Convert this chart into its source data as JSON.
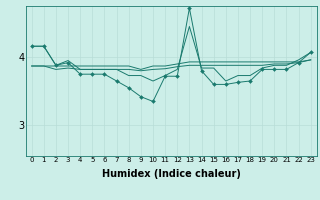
{
  "xlabel": "Humidex (Indice chaleur)",
  "background_color": "#cceee8",
  "line_color": "#1a7a6e",
  "grid_color": "#b8ddd8",
  "x_ticks": [
    0,
    1,
    2,
    3,
    4,
    5,
    6,
    7,
    8,
    9,
    10,
    11,
    12,
    13,
    14,
    15,
    16,
    17,
    18,
    19,
    20,
    21,
    22,
    23
  ],
  "y_ticks": [
    3,
    4
  ],
  "ylim": [
    2.55,
    4.75
  ],
  "xlim": [
    -0.5,
    23.5
  ],
  "smooth_lines": [
    [
      3.87,
      3.87,
      3.82,
      3.84,
      3.82,
      3.82,
      3.82,
      3.82,
      3.82,
      3.8,
      3.82,
      3.83,
      3.86,
      3.88,
      3.88,
      3.88,
      3.88,
      3.88,
      3.88,
      3.88,
      3.9,
      3.9,
      3.92,
      3.96
    ],
    [
      3.87,
      3.87,
      3.87,
      3.87,
      3.87,
      3.87,
      3.87,
      3.87,
      3.87,
      3.82,
      3.87,
      3.87,
      3.9,
      3.93,
      3.93,
      3.93,
      3.93,
      3.93,
      3.93,
      3.93,
      3.93,
      3.93,
      3.93,
      3.96
    ],
    [
      4.16,
      4.16,
      3.88,
      3.95,
      3.82,
      3.82,
      3.82,
      3.82,
      3.73,
      3.73,
      3.65,
      3.73,
      3.82,
      4.45,
      3.84,
      3.84,
      3.65,
      3.73,
      3.73,
      3.84,
      3.88,
      3.88,
      3.96,
      4.07
    ]
  ],
  "volatile_y": [
    4.16,
    4.16,
    3.88,
    3.92,
    3.75,
    3.75,
    3.75,
    3.65,
    3.55,
    3.42,
    3.35,
    3.72,
    3.72,
    4.72,
    3.8,
    3.6,
    3.6,
    3.63,
    3.65,
    3.82,
    3.82,
    3.82,
    3.92,
    4.07
  ],
  "xlabel_fontsize": 7,
  "ytick_fontsize": 7,
  "xtick_fontsize": 5
}
